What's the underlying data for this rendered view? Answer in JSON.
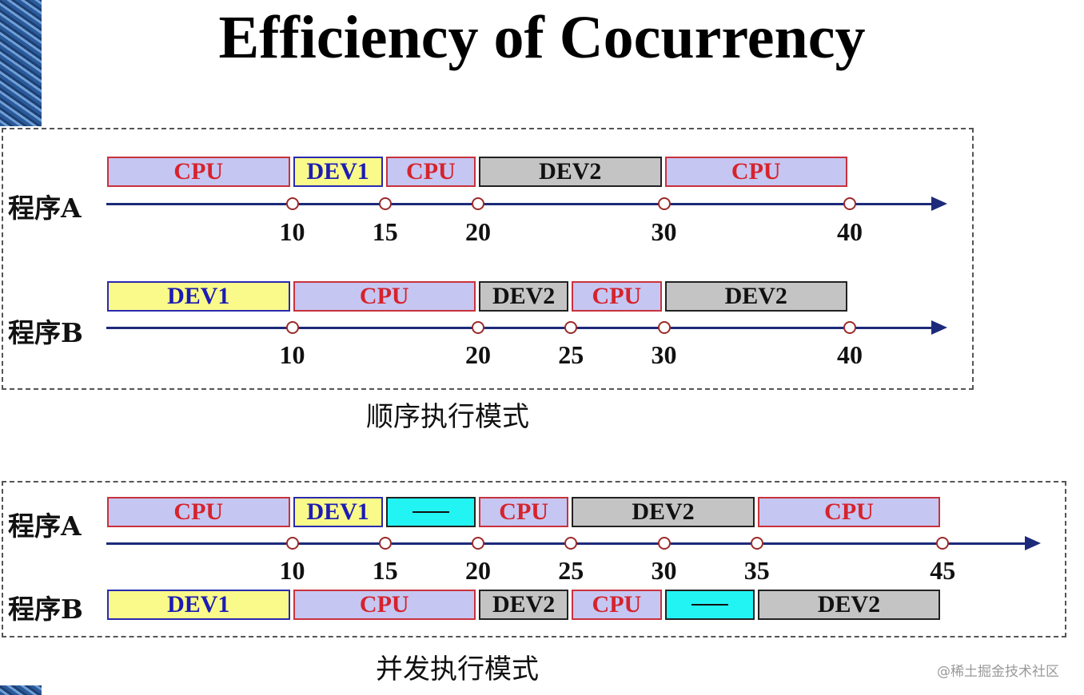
{
  "title": "Efficiency of Cocurrency",
  "colors": {
    "cpu_fill": "#c6c6f2",
    "cpu_text": "#d6232c",
    "dev1_fill": "#fafa8a",
    "dev1_text": "#1c1cb4",
    "dev2_fill": "#c4c4c4",
    "idle_fill": "#22f4f4",
    "axis": "#1d2a7a"
  },
  "sequential": {
    "caption": "顺序执行模式",
    "programs": [
      {
        "label": "程序A",
        "segments": [
          {
            "type": "cpu",
            "text": "CPU",
            "start": 0,
            "end": 10
          },
          {
            "type": "dev1",
            "text": "DEV1",
            "start": 10,
            "end": 15
          },
          {
            "type": "cpu",
            "text": "CPU",
            "start": 15,
            "end": 20
          },
          {
            "type": "dev2",
            "text": "DEV2",
            "start": 20,
            "end": 30
          },
          {
            "type": "cpu",
            "text": "CPU",
            "start": 30,
            "end": 40
          }
        ],
        "ticks": [
          "10",
          "15",
          "20",
          "30",
          "40"
        ]
      },
      {
        "label": "程序B",
        "segments": [
          {
            "type": "dev1",
            "text": "DEV1",
            "start": 0,
            "end": 10
          },
          {
            "type": "cpu",
            "text": "CPU",
            "start": 10,
            "end": 20
          },
          {
            "type": "dev2",
            "text": "DEV2",
            "start": 20,
            "end": 25
          },
          {
            "type": "cpu",
            "text": "CPU",
            "start": 25,
            "end": 30
          },
          {
            "type": "dev2",
            "text": "DEV2",
            "start": 30,
            "end": 40
          }
        ],
        "ticks": [
          "10",
          "20",
          "25",
          "30",
          "40"
        ]
      }
    ]
  },
  "concurrent": {
    "caption": "并发执行模式",
    "programs": [
      {
        "label": "程序A",
        "segments": [
          {
            "type": "cpu",
            "text": "CPU",
            "start": 0,
            "end": 10
          },
          {
            "type": "dev1",
            "text": "DEV1",
            "start": 10,
            "end": 15
          },
          {
            "type": "idle",
            "text": "",
            "start": 15,
            "end": 20
          },
          {
            "type": "cpu",
            "text": "CPU",
            "start": 20,
            "end": 25
          },
          {
            "type": "dev2",
            "text": "DEV2",
            "start": 25,
            "end": 35
          },
          {
            "type": "cpu",
            "text": "CPU",
            "start": 35,
            "end": 45
          }
        ]
      },
      {
        "label": "程序B",
        "segments": [
          {
            "type": "dev1",
            "text": "DEV1",
            "start": 0,
            "end": 10
          },
          {
            "type": "cpu",
            "text": "CPU",
            "start": 10,
            "end": 20
          },
          {
            "type": "dev2",
            "text": "DEV2",
            "start": 20,
            "end": 25
          },
          {
            "type": "cpu",
            "text": "CPU",
            "start": 25,
            "end": 30
          },
          {
            "type": "idle",
            "text": "",
            "start": 30,
            "end": 35
          },
          {
            "type": "dev2",
            "text": "DEV2",
            "start": 35,
            "end": 45
          }
        ]
      }
    ],
    "ticks": [
      "10",
      "15",
      "20",
      "25",
      "30",
      "35",
      "45"
    ]
  },
  "watermark": "@稀土掘金技术社区"
}
